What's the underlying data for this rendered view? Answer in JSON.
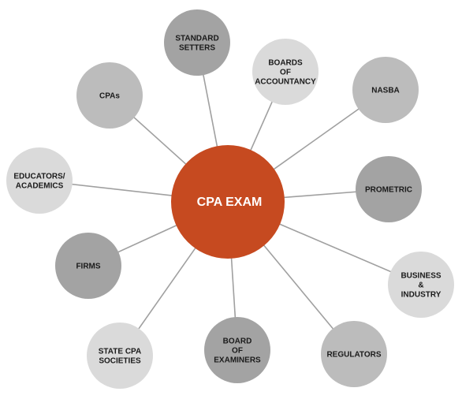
{
  "center": {
    "label": "CPA EXAM",
    "color": "#c64a20"
  },
  "stakeholders": [
    {
      "id": "standard-setters",
      "lines": [
        "STANDARD",
        "SETTERS"
      ],
      "color": "#a3a3a3"
    },
    {
      "id": "boards-of-accountancy",
      "lines": [
        "BOARDS",
        "OF",
        "ACCOUNTANCY"
      ],
      "color": "#dadada"
    },
    {
      "id": "nasba",
      "lines": [
        "NASBA"
      ],
      "color": "#bcbcbc"
    },
    {
      "id": "prometric",
      "lines": [
        "PROMETRIC"
      ],
      "color": "#a3a3a3"
    },
    {
      "id": "business-and-industry",
      "lines": [
        "BUSINESS",
        "&",
        "INDUSTRY"
      ],
      "color": "#dadada"
    },
    {
      "id": "regulators",
      "lines": [
        "REGULATORS"
      ],
      "color": "#bcbcbc"
    },
    {
      "id": "board-of-examiners",
      "lines": [
        "BOARD",
        "OF",
        "EXAMINERS"
      ],
      "color": "#a3a3a3"
    },
    {
      "id": "state-cpa-societies",
      "lines": [
        "STATE CPA",
        "SOCIETIES"
      ],
      "color": "#dadada"
    },
    {
      "id": "firms",
      "lines": [
        "FIRMS"
      ],
      "color": "#a3a3a3"
    },
    {
      "id": "educators-academics",
      "lines": [
        "EDUCATORS/",
        "ACADEMICS"
      ],
      "color": "#dadada"
    },
    {
      "id": "cpas",
      "lines": [
        "CPAs"
      ],
      "color": "#bcbcbc"
    }
  ]
}
